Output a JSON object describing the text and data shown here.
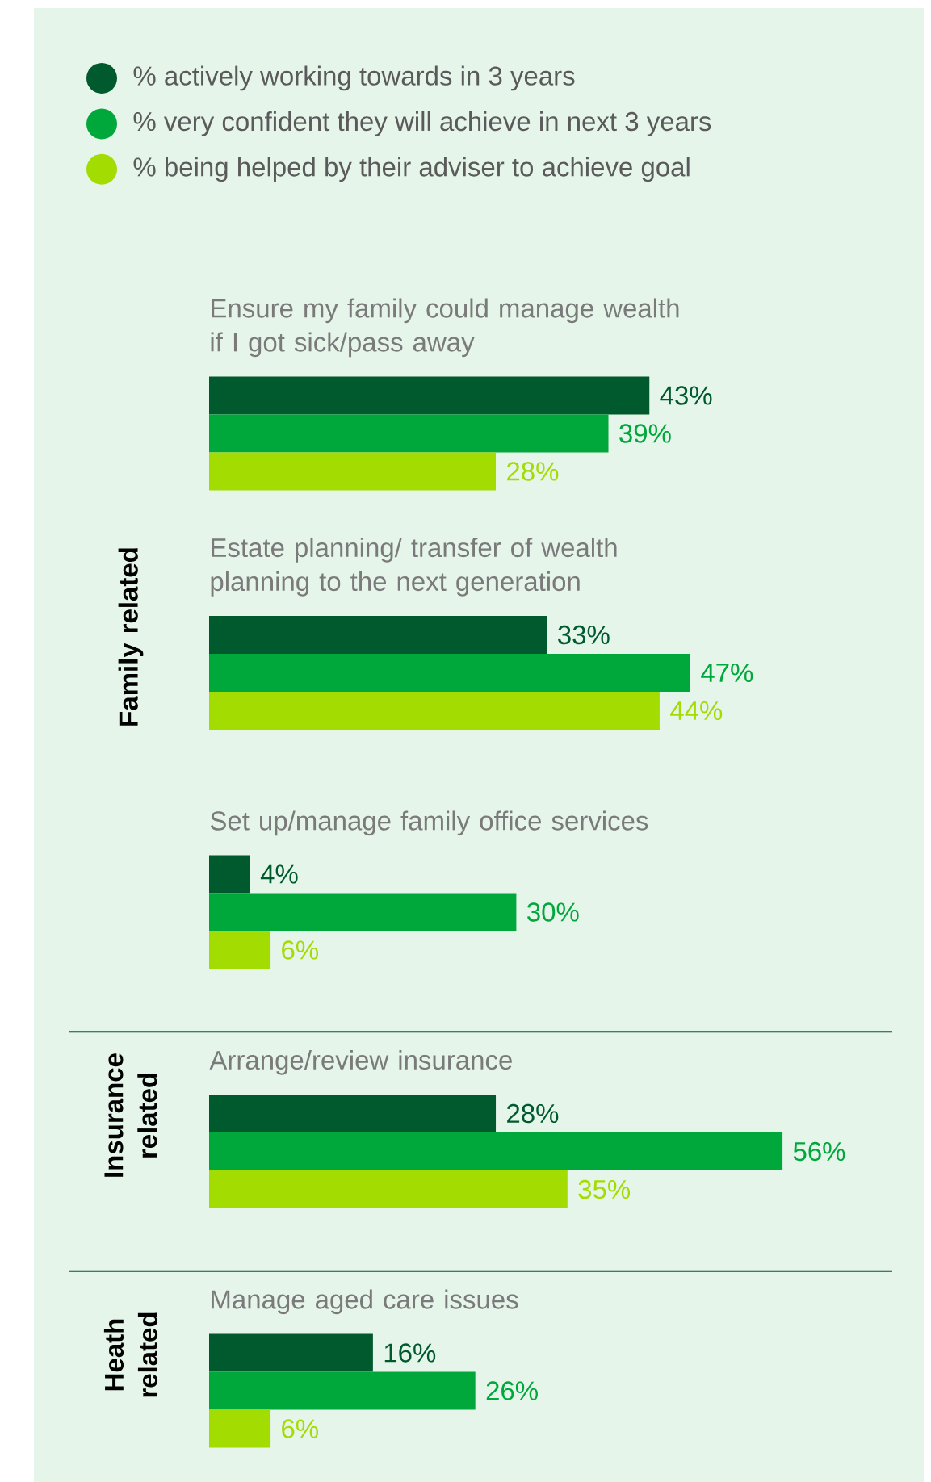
{
  "chart_data": [
    {
      "type": "bar",
      "orientation": "horizontal",
      "legend": "top",
      "categories": [
        "Ensure my family could manage wealth if I got sick/pass away",
        "Estate planning/ transfer of wealth planning to the next generation",
        "Set up/manage family office services"
      ],
      "series": [
        {
          "name": "% actively working towards in 3 years",
          "color": "#005a2e",
          "values": [
            43,
            33,
            4
          ],
          "value_labels": [
            "43%",
            "33%",
            "4%"
          ]
        },
        {
          "name": "% very confident they will achieve in next 3 years",
          "color": "#00a83c",
          "values": [
            39,
            47,
            30
          ],
          "value_labels": [
            "39%",
            "47%",
            "30%"
          ]
        },
        {
          "name": "% being helped by their adviser to achieve goal",
          "color": "#a3dc00",
          "values": [
            28,
            44,
            6
          ],
          "value_labels": [
            "28%",
            "44%",
            "6%"
          ]
        }
      ],
      "annotations": [
        "Family related"
      ]
    },
    {
      "type": "bar",
      "orientation": "horizontal",
      "categories": [
        "Arrange/review insurance"
      ],
      "series": [
        {
          "color": "#005a2e",
          "values": [
            28
          ],
          "value_labels": [
            "28%"
          ]
        },
        {
          "color": "#00a83c",
          "values": [
            56
          ],
          "value_labels": [
            "56%"
          ]
        },
        {
          "color": "#a3dc00",
          "values": [
            35
          ],
          "value_labels": [
            "35%"
          ]
        }
      ],
      "annotations": [
        "Insurance related"
      ]
    },
    {
      "type": "bar",
      "orientation": "horizontal",
      "categories": [
        "Manage aged care issues"
      ],
      "series": [
        {
          "color": "#005a2e",
          "values": [
            16
          ],
          "value_labels": [
            "16%"
          ]
        },
        {
          "color": "#00a83c",
          "values": [
            26
          ],
          "value_labels": [
            "26%"
          ]
        },
        {
          "color": "#a3dc00",
          "values": [
            6
          ],
          "value_labels": [
            "6%"
          ]
        }
      ],
      "annotations": [
        "Heath related"
      ]
    }
  ]
}
